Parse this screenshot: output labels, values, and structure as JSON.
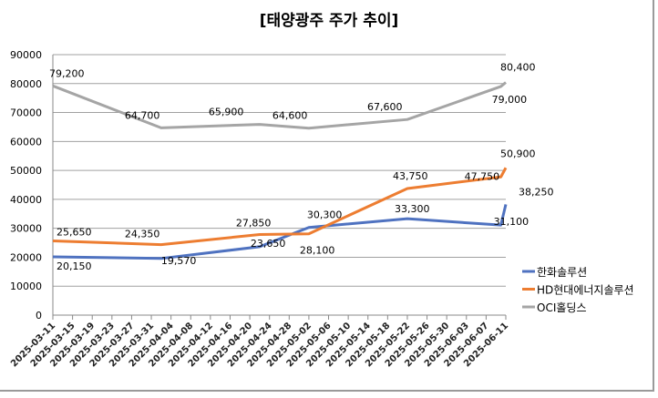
{
  "chart_data": {
    "type": "line",
    "title": "[태양광주 주가 추이]",
    "xlabel": "",
    "ylabel": "",
    "ylim": [
      0,
      90000
    ],
    "y_ticks": [
      "0",
      "10000",
      "20000",
      "30000",
      "40000",
      "50000",
      "60000",
      "70000",
      "80000",
      "90000"
    ],
    "x_ticks": [
      "2025-03-11",
      "2025-03-15",
      "2025-03-19",
      "2025-03-23",
      "2025-03-27",
      "2025-03-31",
      "2025-04-04",
      "2025-04-08",
      "2025-04-12",
      "2025-04-16",
      "2025-04-20",
      "2025-04-24",
      "2025-04-28",
      "2025-05-02",
      "2025-05-06",
      "2025-05-10",
      "2025-05-14",
      "2025-05-18",
      "2025-05-22",
      "2025-05-26",
      "2025-05-30",
      "2025-06-03",
      "2025-06-07",
      "2025-06-11"
    ],
    "xlim": [
      "2025-03-11",
      "2025-06-11"
    ],
    "grid": true,
    "legend": "right",
    "x": [
      "2025-03-11",
      "2025-04-02",
      "2025-04-22",
      "2025-05-02",
      "2025-05-22",
      "2025-06-10",
      "2025-06-11"
    ],
    "series": [
      {
        "name": "한화솔루션",
        "color": "#4f72c0",
        "values": [
          20150,
          19570,
          23650,
          30300,
          33300,
          31100,
          38250
        ],
        "labels": [
          "20,150",
          "19,570",
          "23,650",
          "30,300",
          "33,300",
          "31,100",
          "38,250"
        ]
      },
      {
        "name": "HD현대에너지솔루션",
        "color": "#ed7d31",
        "values": [
          25650,
          24350,
          27850,
          28100,
          43750,
          47750,
          50900
        ],
        "labels": [
          "25,650",
          "24,350",
          "27,850",
          "28,100",
          "43,750",
          "47,750",
          "50,900"
        ]
      },
      {
        "name": "OCI홀딩스",
        "color": "#a5a5a5",
        "values": [
          79200,
          64700,
          65900,
          64600,
          67600,
          79000,
          80400
        ],
        "labels": [
          "79,200",
          "64,700",
          "65,900",
          "64,600",
          "67,600",
          "79,000",
          "80,400"
        ]
      }
    ]
  }
}
